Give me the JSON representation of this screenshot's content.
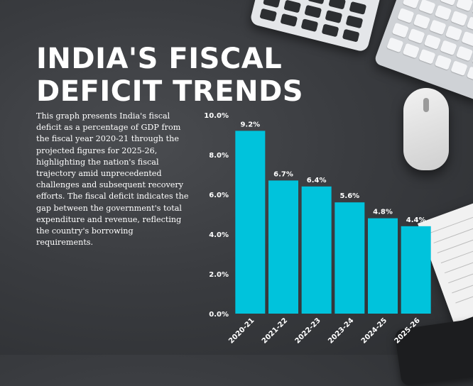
{
  "header": {
    "title_line1": "INDIA'S FISCAL",
    "title_line2": "DEFICIT TRENDS"
  },
  "description": "This graph presents India's fiscal deficit as a percentage of GDP from the fiscal year 2020-21 through the projected figures for 2025-26, highlighting the nation's fiscal trajectory amid unprecedented challenges and subsequent recovery efforts. The fiscal deficit indicates the gap between the government's total expenditure and revenue, reflecting the country's borrowing requirements.",
  "colors": {
    "bar": "#00c3dc",
    "text": "#ffffff"
  },
  "chart_data": {
    "type": "bar",
    "categories": [
      "2020-21",
      "2021-22",
      "2022-23",
      "2023-24",
      "2024-25",
      "2025-26"
    ],
    "values": [
      9.2,
      6.7,
      6.4,
      5.6,
      4.8,
      4.4
    ],
    "data_labels": [
      "9.2%",
      "6.7%",
      "6.4%",
      "5.6%",
      "4.8%",
      "4.4%"
    ],
    "ylim": [
      0,
      10
    ],
    "yticks": [
      0,
      2,
      4,
      6,
      8,
      10
    ],
    "ytick_labels": [
      "0.0%",
      "2.0%",
      "4.0%",
      "6.0%",
      "8.0%",
      "10.0%"
    ],
    "grid": false,
    "legend": false
  }
}
